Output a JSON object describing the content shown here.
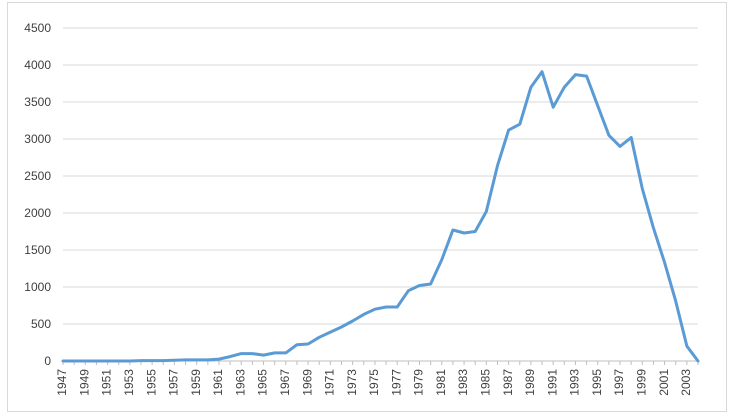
{
  "chart_data": {
    "type": "line",
    "ylim": [
      0,
      4500
    ],
    "yticks": [
      0,
      500,
      1000,
      1500,
      2000,
      2500,
      3000,
      3500,
      4000,
      4500
    ],
    "xtick_labels": [
      "1947",
      "1949",
      "1951",
      "1953",
      "1955",
      "1957",
      "1959",
      "1961",
      "1963",
      "1965",
      "1967",
      "1969",
      "1971",
      "1973",
      "1975",
      "1977",
      "1979",
      "1981",
      "1983",
      "1985",
      "1987",
      "1989",
      "1991",
      "1993",
      "1995",
      "1997",
      "1999",
      "2001",
      "2003"
    ],
    "grid": true,
    "legend": "none",
    "color": "#5b9bd5",
    "series": [
      {
        "x": [
          1947,
          1948,
          1949,
          1950,
          1951,
          1952,
          1953,
          1954,
          1955,
          1956,
          1957,
          1958,
          1959,
          1960,
          1961,
          1962,
          1963,
          1964,
          1965,
          1966,
          1967,
          1968,
          1969,
          1970,
          1971,
          1972,
          1973,
          1974,
          1975,
          1976,
          1977,
          1978,
          1979,
          1980,
          1981,
          1982,
          1983,
          1984,
          1985,
          1986,
          1987,
          1988,
          1989,
          1990,
          1991,
          1992,
          1993,
          1994,
          1995,
          1996,
          1997,
          1998,
          1999,
          2000,
          2001,
          2002,
          2003,
          2004
        ],
        "values": [
          0,
          0,
          0,
          0,
          0,
          0,
          0,
          5,
          5,
          5,
          10,
          15,
          15,
          15,
          25,
          60,
          100,
          100,
          80,
          110,
          110,
          220,
          230,
          320,
          390,
          460,
          540,
          630,
          700,
          730,
          730,
          950,
          1020,
          1040,
          1370,
          1770,
          1730,
          1750,
          2020,
          2640,
          3120,
          3200,
          3700,
          3910,
          3430,
          3700,
          3870,
          3850,
          3450,
          3050,
          2900,
          3020,
          2330,
          1800,
          1330,
          810,
          200,
          0
        ]
      }
    ]
  }
}
